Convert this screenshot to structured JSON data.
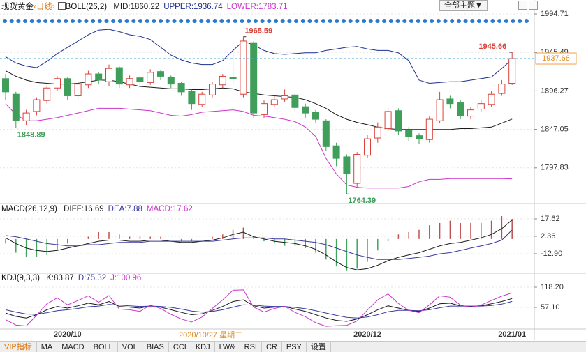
{
  "chart_data": [
    {
      "type": "candlestick",
      "title": "现货黄金",
      "period": "‹日线›",
      "indicator": "BOLL(26,2)",
      "legend_separator": ":",
      "categories": [
        null,
        null,
        null,
        null,
        null,
        null,
        "2020/10",
        null,
        null,
        null,
        null,
        null,
        null,
        null,
        null,
        null,
        null,
        null,
        null,
        null,
        null,
        null,
        null,
        null,
        null,
        null,
        null,
        null,
        null,
        null,
        null,
        null,
        null,
        null,
        null,
        "2020/12",
        null,
        null,
        null,
        null,
        null,
        null,
        null,
        null,
        null,
        null,
        null,
        null,
        null,
        "2021/01"
      ],
      "open": [
        1912,
        1892,
        1858,
        1870,
        1884,
        1900,
        1912,
        1890,
        1904,
        1918,
        1908,
        1926,
        1904,
        1913,
        1907,
        1921,
        1914,
        1906,
        1896,
        1879,
        1891,
        1904,
        1914,
        1892,
        1958,
        1866,
        1879,
        1886,
        1891,
        1876,
        1869,
        1858,
        1826,
        1812,
        1778,
        1814,
        1836,
        1848,
        1871,
        1846,
        1839,
        1834,
        1858,
        1886,
        1881,
        1864,
        1873,
        1879,
        1893,
        1906
      ],
      "high": [
        1918,
        1895,
        1872,
        1888,
        1903,
        1915,
        1914,
        1908,
        1922,
        1920,
        1930,
        1928,
        1916,
        1915,
        1924,
        1923,
        1916,
        1908,
        1898,
        1895,
        1908,
        1918,
        1950,
        1965.59,
        1960,
        1884,
        1890,
        1898,
        1893,
        1880,
        1872,
        1860,
        1830,
        1815,
        1818,
        1840,
        1856,
        1875,
        1874,
        1850,
        1842,
        1864,
        1895,
        1890,
        1884,
        1876,
        1885,
        1896,
        1910,
        1945.66
      ],
      "low": [
        1885,
        1848.89,
        1852,
        1865,
        1880,
        1896,
        1885,
        1886,
        1900,
        1905,
        1902,
        1900,
        1900,
        1902,
        1904,
        1910,
        1900,
        1890,
        1872,
        1876,
        1888,
        1900,
        1905,
        1888,
        1862,
        1862,
        1875,
        1882,
        1870,
        1862,
        1855,
        1820,
        1800,
        1764.39,
        1772,
        1810,
        1830,
        1845,
        1840,
        1832,
        1828,
        1830,
        1855,
        1874,
        1860,
        1860,
        1870,
        1876,
        1890,
        1904
      ],
      "close": [
        1895,
        1858,
        1868,
        1885,
        1900,
        1912,
        1890,
        1905,
        1918,
        1910,
        1925,
        1905,
        1912,
        1908,
        1920,
        1915,
        1905,
        1895,
        1880,
        1892,
        1905,
        1915,
        1912,
        1960,
        1868,
        1880,
        1885,
        1890,
        1875,
        1868,
        1860,
        1825,
        1810,
        1790,
        1815,
        1835,
        1850,
        1870,
        1845,
        1838,
        1835,
        1860,
        1885,
        1880,
        1865,
        1872,
        1880,
        1892,
        1905,
        1937.66
      ],
      "up_color": "#d9413a",
      "down_color": "#3f9e5a",
      "series": [
        {
          "name": "MID",
          "color": "#1a1a1a",
          "values": [
            1922,
            1915,
            1910,
            1907,
            1906,
            1905,
            1905,
            1906,
            1908,
            1910,
            1910,
            1908,
            1905,
            1902,
            1901,
            1900,
            1899,
            1899,
            1898,
            1898,
            1899,
            1900,
            1899,
            1895,
            1893,
            1891,
            1890,
            1889,
            1888,
            1885,
            1880,
            1874,
            1866,
            1860,
            1856,
            1853,
            1850,
            1848,
            1847,
            1847,
            1847,
            1847,
            1847,
            1847,
            1848,
            1848,
            1849,
            1850,
            1855,
            1860.22
          ]
        },
        {
          "name": "UPPER",
          "color": "#1f2f8f",
          "values": [
            1940,
            1932,
            1928,
            1926,
            1934,
            1944,
            1952,
            1960,
            1968,
            1974,
            1975,
            1972,
            1968,
            1966,
            1962,
            1952,
            1942,
            1936,
            1932,
            1930,
            1930,
            1935,
            1948,
            1960,
            1955,
            1948,
            1944,
            1943,
            1944,
            1945,
            1945,
            1948,
            1950,
            1952,
            1953,
            1950,
            1948,
            1948,
            1945,
            1935,
            1910,
            1906,
            1907,
            1908,
            1908,
            1910,
            1912,
            1914,
            1925,
            1936.74
          ]
        },
        {
          "name": "LOWER",
          "color": "#cc33cc",
          "values": [
            1880,
            1866,
            1858,
            1858,
            1860,
            1862,
            1865,
            1868,
            1871,
            1874,
            1874,
            1874,
            1873,
            1872,
            1871,
            1868,
            1865,
            1864,
            1866,
            1869,
            1870,
            1871,
            1872,
            1870,
            1865,
            1864,
            1862,
            1860,
            1857,
            1850,
            1838,
            1810,
            1790,
            1776,
            1773,
            1772,
            1772,
            1772,
            1772,
            1774,
            1780,
            1783,
            1783,
            1784,
            1784,
            1784,
            1784,
            1784,
            1784,
            1783.71
          ]
        }
      ],
      "annotations": [
        "1965.59",
        "1848.89",
        "1764.39",
        "1945.66"
      ],
      "price_line_color": "#3fa9d9",
      "ylim": [
        1753.06,
        2005.45
      ],
      "yticks": [
        1797.83,
        1847.05,
        1896.27,
        1945.49,
        1994.71
      ],
      "grid": true
    },
    {
      "type": "combo",
      "title": "MACD(26,12,9)",
      "legend_separator": ":",
      "series": [
        {
          "name": "DIFF",
          "kind": "line",
          "color": "#1a1a1a",
          "values": [
            1,
            -4,
            -8,
            -10,
            -11,
            -10,
            -8,
            -6,
            -4,
            -2,
            -1,
            -1,
            -2,
            -2,
            -1,
            -1,
            -2,
            -3,
            -3,
            -2,
            -1,
            1,
            4,
            6,
            2,
            0,
            -2,
            -3,
            -4,
            -6,
            -9,
            -14,
            -20,
            -25,
            -27,
            -26,
            -23,
            -19,
            -16,
            -14,
            -12,
            -9,
            -6,
            -4,
            -3,
            -1,
            1,
            4,
            9,
            16.69
          ]
        },
        {
          "name": "DEA",
          "kind": "line",
          "color": "#3a3aa0",
          "values": [
            3,
            2,
            0,
            -2,
            -4,
            -5,
            -6,
            -6,
            -5,
            -5,
            -4,
            -3,
            -3,
            -3,
            -2,
            -2,
            -2,
            -2,
            -2,
            -2,
            -2,
            -1,
            0,
            1,
            1,
            1,
            0,
            0,
            -1,
            -2,
            -3,
            -5,
            -8,
            -11,
            -14,
            -16,
            -18,
            -18,
            -18,
            -17,
            -16,
            -15,
            -13,
            -12,
            -10,
            -8,
            -6,
            -4,
            -1,
            7.88
          ]
        },
        {
          "name": "MACD",
          "kind": "bar",
          "color": "#cc33cc",
          "up_color": "#c0504d",
          "down_color": "#3fa55a",
          "values": [
            -4,
            -12,
            -16,
            -16,
            -14,
            -10,
            -4,
            0,
            2,
            6,
            6,
            4,
            2,
            2,
            2,
            2,
            0,
            -2,
            -2,
            0,
            2,
            4,
            8,
            10,
            2,
            -2,
            -4,
            -6,
            -6,
            -8,
            -12,
            -18,
            -24,
            -28,
            -26,
            -20,
            -10,
            -2,
            4,
            6,
            8,
            12,
            14,
            16,
            14,
            14,
            14,
            16,
            20,
            17.62
          ]
        }
      ],
      "ylim": [
        -29.4,
        28.6
      ],
      "yticks": [
        {
          "value": -12.9,
          "label": "-12.90"
        },
        2.36,
        17.62
      ],
      "grid": true
    },
    {
      "type": "line",
      "title": "KDJ(9,3,3)",
      "legend_separator": ":",
      "series": [
        {
          "name": "K",
          "color": "#1a1a1a",
          "values": [
            40,
            30,
            25,
            35,
            50,
            60,
            55,
            62,
            70,
            65,
            75,
            60,
            58,
            55,
            62,
            58,
            50,
            42,
            35,
            38,
            48,
            60,
            75,
            80,
            62,
            55,
            58,
            60,
            52,
            45,
            35,
            25,
            18,
            15,
            22,
            35,
            50,
            62,
            55,
            48,
            45,
            55,
            68,
            70,
            62,
            60,
            62,
            68,
            75,
            83.87
          ]
        },
        {
          "name": "D",
          "color": "#3a3aa0",
          "values": [
            50,
            43,
            37,
            36,
            41,
            47,
            50,
            54,
            59,
            61,
            66,
            64,
            62,
            60,
            61,
            60,
            57,
            52,
            46,
            43,
            45,
            50,
            58,
            65,
            64,
            61,
            60,
            60,
            57,
            53,
            47,
            40,
            33,
            27,
            25,
            28,
            35,
            44,
            48,
            48,
            47,
            50,
            56,
            61,
            61,
            61,
            61,
            63,
            67,
            75.32
          ]
        },
        {
          "name": "J",
          "color": "#cc33cc",
          "values": [
            20,
            4,
            1,
            33,
            68,
            86,
            65,
            78,
            92,
            73,
            93,
            52,
            50,
            45,
            64,
            54,
            36,
            22,
            13,
            28,
            54,
            80,
            109,
            110,
            58,
            43,
            54,
            60,
            42,
            29,
            11,
            0,
            2,
            3,
            16,
            49,
            80,
            98,
            69,
            48,
            41,
            65,
            92,
            88,
            64,
            58,
            64,
            78,
            91,
            100.96
          ]
        }
      ],
      "ylim": [
        -6.1,
        151.9
      ],
      "yticks": [
        {
          "value": 57.1,
          "label": "57.10"
        },
        {
          "value": 118.2,
          "label": "118.20"
        }
      ],
      "grid": true
    }
  ],
  "cursor_label": "2020/10/27 星期二",
  "theme_button": "全部主题▼",
  "tabs": [
    "VIP指标",
    "MA",
    "MACD",
    "BOLL",
    "VOL",
    "BIAS",
    "CCI",
    "KDJ",
    "LW&",
    "RSI",
    "CR",
    "PSY",
    "设置"
  ]
}
